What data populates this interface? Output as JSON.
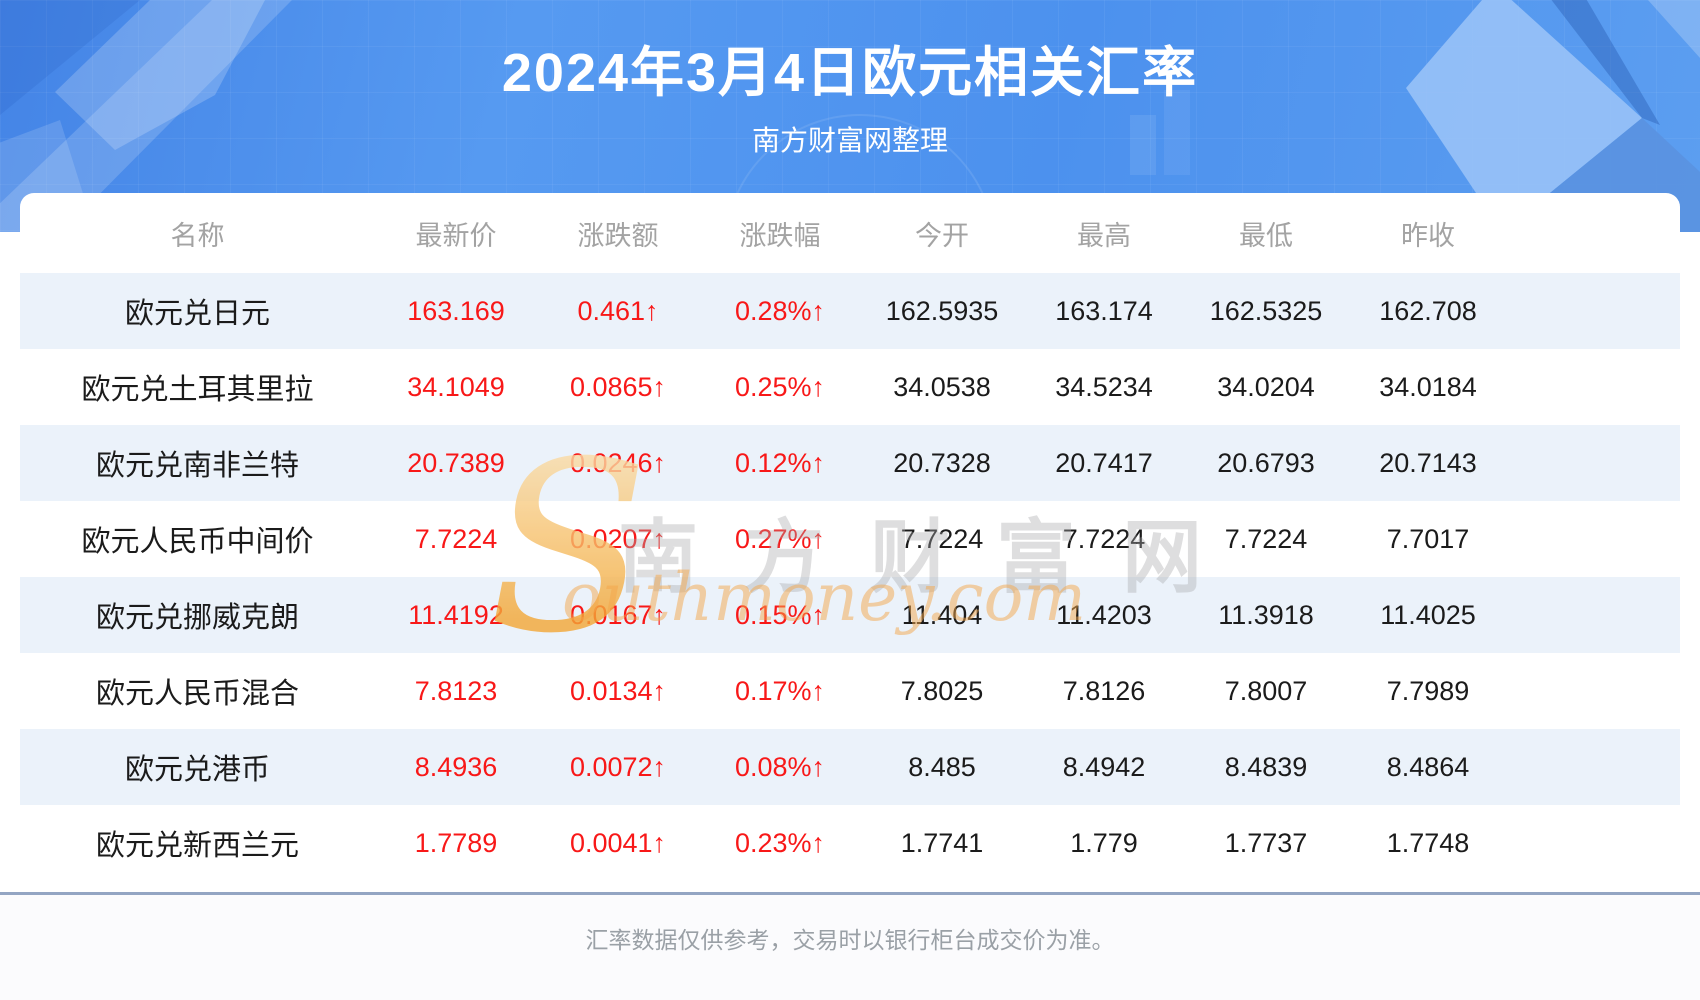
{
  "header": {
    "title": "2024年3月4日欧元相关汇率",
    "subtitle": "南方财富网整理"
  },
  "watermark": {
    "s": "S",
    "cn": "南方财富网",
    "en": "outhmoney.com"
  },
  "footer": {
    "note": "汇率数据仅供参考，交易时以银行柜台成交价为准。"
  },
  "colors": {
    "banner_blue": "#4c91ee",
    "banner_shape_light": "#9cc4f8",
    "value_red": "#f81818",
    "value_black": "#1b1b1b",
    "header_gray": "#a3a3a3",
    "row_alt_blue": "#ebf2fa",
    "divider": "#93a5c3",
    "watermark_gold": "#f3a735"
  },
  "chart_data": {
    "type": "table",
    "title": "2024年3月4日欧元相关汇率",
    "subtitle": "南方财富网整理",
    "columns": [
      {
        "key": "name",
        "label": "名称",
        "style": "name"
      },
      {
        "key": "latest",
        "label": "最新价",
        "style": "red"
      },
      {
        "key": "change",
        "label": "涨跌额",
        "style": "red"
      },
      {
        "key": "pct",
        "label": "涨跌幅",
        "style": "red"
      },
      {
        "key": "open",
        "label": "今开",
        "style": "plain"
      },
      {
        "key": "high",
        "label": "最高",
        "style": "plain"
      },
      {
        "key": "low",
        "label": "最低",
        "style": "plain"
      },
      {
        "key": "prev",
        "label": "昨收",
        "style": "plain"
      }
    ],
    "rows": [
      {
        "name": "欧元兑日元",
        "latest": "163.169",
        "change": "0.461↑",
        "pct": "0.28%↑",
        "open": "162.5935",
        "high": "163.174",
        "low": "162.5325",
        "prev": "162.708"
      },
      {
        "name": "欧元兑土耳其里拉",
        "latest": "34.1049",
        "change": "0.0865↑",
        "pct": "0.25%↑",
        "open": "34.0538",
        "high": "34.5234",
        "low": "34.0204",
        "prev": "34.0184"
      },
      {
        "name": "欧元兑南非兰特",
        "latest": "20.7389",
        "change": "0.0246↑",
        "pct": "0.12%↑",
        "open": "20.7328",
        "high": "20.7417",
        "low": "20.6793",
        "prev": "20.7143"
      },
      {
        "name": "欧元人民币中间价",
        "latest": "7.7224",
        "change": "0.0207↑",
        "pct": "0.27%↑",
        "open": "7.7224",
        "high": "7.7224",
        "low": "7.7224",
        "prev": "7.7017"
      },
      {
        "name": "欧元兑挪威克朗",
        "latest": "11.4192",
        "change": "0.0167↑",
        "pct": "0.15%↑",
        "open": "11.404",
        "high": "11.4203",
        "low": "11.3918",
        "prev": "11.4025"
      },
      {
        "name": "欧元人民币混合",
        "latest": "7.8123",
        "change": "0.0134↑",
        "pct": "0.17%↑",
        "open": "7.8025",
        "high": "7.8126",
        "low": "7.8007",
        "prev": "7.7989"
      },
      {
        "name": "欧元兑港币",
        "latest": "8.4936",
        "change": "0.0072↑",
        "pct": "0.08%↑",
        "open": "8.485",
        "high": "8.4942",
        "low": "8.4839",
        "prev": "8.4864"
      },
      {
        "name": "欧元兑新西兰元",
        "latest": "1.7789",
        "change": "0.0041↑",
        "pct": "0.23%↑",
        "open": "1.7741",
        "high": "1.779",
        "low": "1.7737",
        "prev": "1.7748"
      }
    ]
  }
}
